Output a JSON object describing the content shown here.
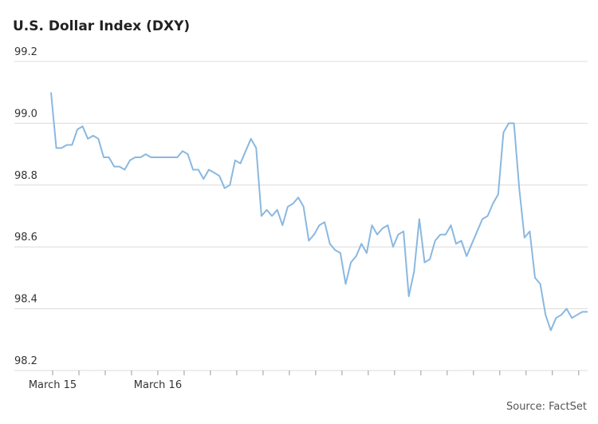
{
  "chart_data": {
    "type": "line",
    "title": "U.S. Dollar Index (DXY)",
    "source": "Source: FactSet",
    "categories": [
      "March 15",
      null,
      null,
      null,
      null,
      null,
      null,
      null,
      null,
      null,
      null,
      null,
      null,
      null,
      null,
      null,
      null,
      null,
      null,
      null,
      "March 16",
      null,
      null,
      null,
      null,
      null,
      null,
      null,
      null,
      null,
      null,
      null,
      null,
      null,
      null,
      null,
      null,
      null,
      null,
      null,
      null,
      null,
      null,
      null,
      null,
      null,
      null,
      null,
      null,
      null,
      null,
      null,
      null,
      null,
      null,
      null,
      null,
      null,
      null,
      null,
      null,
      null,
      null,
      null,
      null,
      null,
      null,
      null,
      null,
      null,
      null,
      null,
      null,
      null,
      null,
      null,
      null,
      null,
      null,
      null,
      null,
      null,
      null,
      null,
      null,
      null,
      null,
      null,
      null,
      null,
      null,
      null,
      null,
      null,
      null,
      null,
      null,
      null,
      null,
      null,
      null,
      null,
      null
    ],
    "values": [
      99.1,
      98.92,
      98.92,
      98.93,
      98.93,
      98.98,
      98.99,
      98.95,
      98.96,
      98.95,
      98.89,
      98.89,
      98.86,
      98.86,
      98.85,
      98.88,
      98.89,
      98.89,
      98.9,
      98.89,
      98.89,
      98.89,
      98.89,
      98.89,
      98.89,
      98.91,
      98.9,
      98.85,
      98.85,
      98.82,
      98.85,
      98.84,
      98.83,
      98.79,
      98.8,
      98.88,
      98.87,
      98.91,
      98.95,
      98.92,
      98.7,
      98.72,
      98.7,
      98.72,
      98.67,
      98.73,
      98.74,
      98.76,
      98.73,
      98.62,
      98.64,
      98.67,
      98.68,
      98.61,
      98.59,
      98.58,
      98.48,
      98.55,
      98.57,
      98.61,
      98.58,
      98.67,
      98.64,
      98.66,
      98.67,
      98.6,
      98.64,
      98.65,
      98.44,
      98.52,
      98.69,
      98.55,
      98.56,
      98.62,
      98.64,
      98.64,
      98.67,
      98.61,
      98.62,
      98.57,
      98.61,
      98.65,
      98.69,
      98.7,
      98.74,
      98.77,
      98.97,
      99.0,
      99.0,
      98.79,
      98.63,
      98.65,
      98.5,
      98.48,
      98.38,
      98.33,
      98.37,
      98.38,
      98.4,
      98.37,
      98.38,
      98.39,
      98.39
    ],
    "color": "#8ab8e0",
    "ylim": [
      98.2,
      99.2
    ],
    "yticks": [
      98.2,
      98.4,
      98.6,
      98.8,
      {
        "value": 99.0,
        "label": "99.0"
      },
      99.2
    ],
    "grid": true
  }
}
